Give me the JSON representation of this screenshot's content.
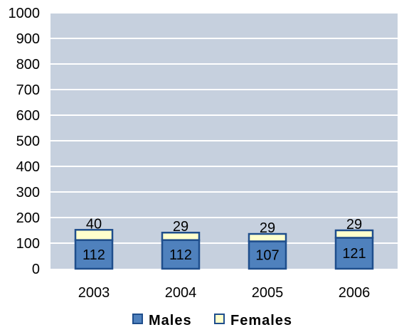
{
  "chart_data": {
    "type": "bar",
    "stacked": true,
    "categories": [
      "2003",
      "2004",
      "2005",
      "2006"
    ],
    "series": [
      {
        "name": "Males",
        "values": [
          112,
          112,
          107,
          121
        ],
        "color": "#4F81BD"
      },
      {
        "name": "Females",
        "values": [
          40,
          29,
          29,
          29
        ],
        "color": "#FFFFCC"
      }
    ],
    "ylim": [
      0,
      1000
    ],
    "yticks": [
      0,
      100,
      200,
      300,
      400,
      500,
      600,
      700,
      800,
      900,
      1000
    ],
    "grid": true,
    "legend_position": "bottom",
    "colors": {
      "plot_background": "#C6D0DE",
      "gridline": "#FFFFFF",
      "bar_border": "#1F4E8C"
    }
  }
}
